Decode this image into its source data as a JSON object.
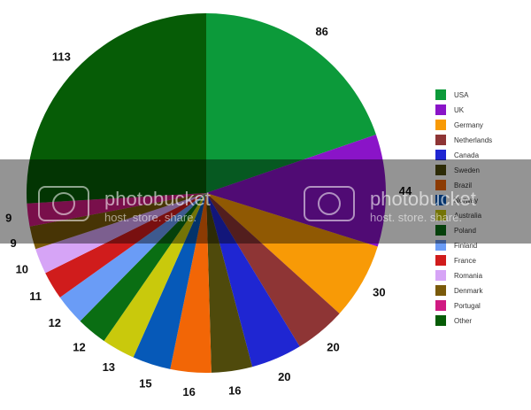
{
  "chart_data": {
    "type": "pie",
    "title": "",
    "slices": [
      {
        "label": "USA",
        "value": 86,
        "color": "#0c9a3a"
      },
      {
        "label": "UK",
        "value": 44,
        "color": "#8a14c8"
      },
      {
        "label": "Germany",
        "value": 30,
        "color": "#f89a06"
      },
      {
        "label": "Netherlands",
        "value": 20,
        "color": "#8e3535"
      },
      {
        "label": "Canada",
        "value": 20,
        "color": "#1f26d2"
      },
      {
        "label": "Sweden",
        "value": 16,
        "color": "#4f4a0c"
      },
      {
        "label": "Brazil",
        "value": 16,
        "color": "#f26606"
      },
      {
        "label": "Norway",
        "value": 15,
        "color": "#0659b8"
      },
      {
        "label": "Australia",
        "value": 13,
        "color": "#c9c90c"
      },
      {
        "label": "Poland",
        "value": 12,
        "color": "#0a6e13"
      },
      {
        "label": "Finland",
        "value": 12,
        "color": "#6a9cf6"
      },
      {
        "label": "France",
        "value": 11,
        "color": "#d01c1c"
      },
      {
        "label": "Romania",
        "value": 10,
        "color": "#d6a4f6"
      },
      {
        "label": "Denmark",
        "value": 9,
        "color": "#7a5a0a"
      },
      {
        "label": "Portugal",
        "value": 9,
        "color": "#d01a82"
      },
      {
        "label": "Other",
        "value": 113,
        "color": "#065c06"
      }
    ],
    "legend_position": "right",
    "value_labels_shown": true
  },
  "watermark": {
    "brand": "photobucket",
    "tagline": "host. store. share."
  }
}
